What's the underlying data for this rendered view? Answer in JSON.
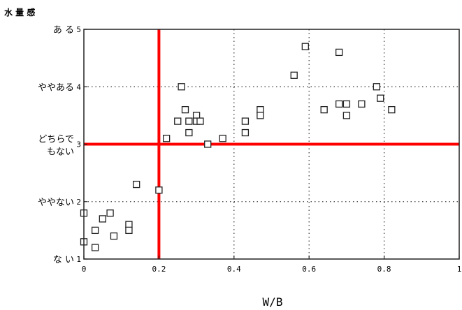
{
  "chart_data": {
    "type": "scatter",
    "y_title": "水 量 感",
    "xlabel": "W/B",
    "xlim": [
      0,
      1
    ],
    "ylim": [
      1,
      5
    ],
    "x_ticks": [
      "0",
      "0.2",
      "0.4",
      "0.6",
      "0.8",
      "1"
    ],
    "y_ticks": [
      "1",
      "2",
      "3",
      "4",
      "5"
    ],
    "y_category_labels": [
      {
        "value": 5,
        "text": "あ る"
      },
      {
        "value": 4,
        "text": "ややある"
      },
      {
        "value": 3,
        "text": "どちらで"
      },
      {
        "value": 3,
        "text": "もない"
      },
      {
        "value": 2,
        "text": "ややない"
      },
      {
        "value": 1,
        "text": "な い"
      }
    ],
    "grid": true,
    "reference_lines": {
      "x": 0.2,
      "y": 3.0,
      "color": "#ff0000"
    },
    "marker": "open-square",
    "points": [
      {
        "x": 0.0,
        "y": 1.8
      },
      {
        "x": 0.0,
        "y": 1.3
      },
      {
        "x": 0.03,
        "y": 1.5
      },
      {
        "x": 0.03,
        "y": 1.2
      },
      {
        "x": 0.05,
        "y": 1.7
      },
      {
        "x": 0.07,
        "y": 1.8
      },
      {
        "x": 0.08,
        "y": 1.4
      },
      {
        "x": 0.12,
        "y": 1.6
      },
      {
        "x": 0.12,
        "y": 1.5
      },
      {
        "x": 0.14,
        "y": 2.3
      },
      {
        "x": 0.2,
        "y": 2.2
      },
      {
        "x": 0.22,
        "y": 3.1
      },
      {
        "x": 0.25,
        "y": 3.4
      },
      {
        "x": 0.26,
        "y": 4.0
      },
      {
        "x": 0.27,
        "y": 3.6
      },
      {
        "x": 0.28,
        "y": 3.4
      },
      {
        "x": 0.28,
        "y": 3.2
      },
      {
        "x": 0.3,
        "y": 3.5
      },
      {
        "x": 0.3,
        "y": 3.4
      },
      {
        "x": 0.31,
        "y": 3.4
      },
      {
        "x": 0.33,
        "y": 3.0
      },
      {
        "x": 0.37,
        "y": 3.1
      },
      {
        "x": 0.43,
        "y": 3.4
      },
      {
        "x": 0.43,
        "y": 3.2
      },
      {
        "x": 0.47,
        "y": 3.6
      },
      {
        "x": 0.47,
        "y": 3.5
      },
      {
        "x": 0.56,
        "y": 4.2
      },
      {
        "x": 0.59,
        "y": 4.7
      },
      {
        "x": 0.64,
        "y": 3.6
      },
      {
        "x": 0.68,
        "y": 4.6
      },
      {
        "x": 0.68,
        "y": 3.7
      },
      {
        "x": 0.7,
        "y": 3.7
      },
      {
        "x": 0.7,
        "y": 3.5
      },
      {
        "x": 0.74,
        "y": 3.7
      },
      {
        "x": 0.78,
        "y": 4.0
      },
      {
        "x": 0.79,
        "y": 3.8
      },
      {
        "x": 0.82,
        "y": 3.6
      }
    ]
  }
}
